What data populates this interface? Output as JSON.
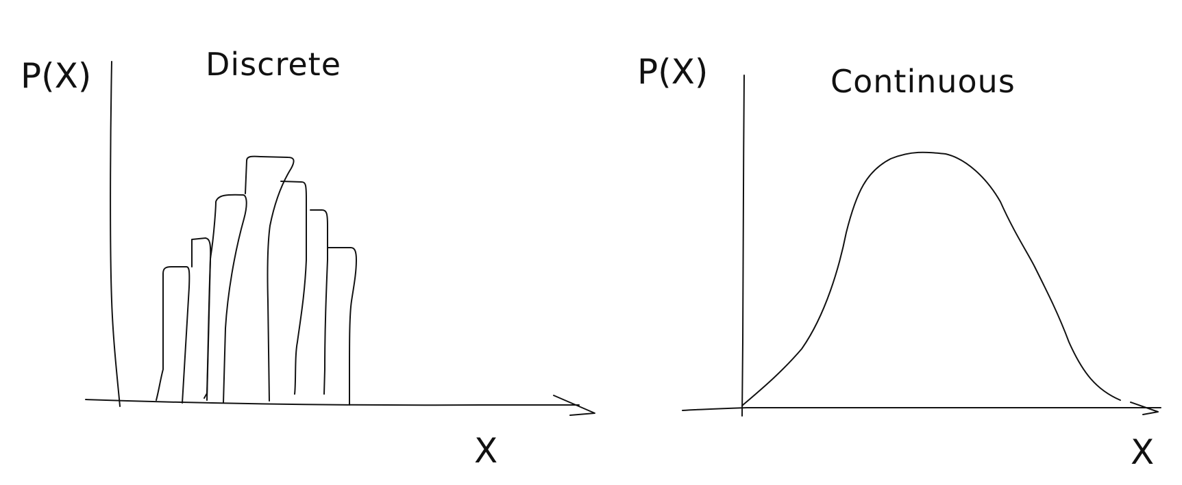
{
  "panels": [
    {
      "title": "Discrete",
      "y_label": "P(X)",
      "x_label": "X"
    },
    {
      "title": "Continuous",
      "y_label": "P(X)",
      "x_label": "X"
    }
  ]
}
